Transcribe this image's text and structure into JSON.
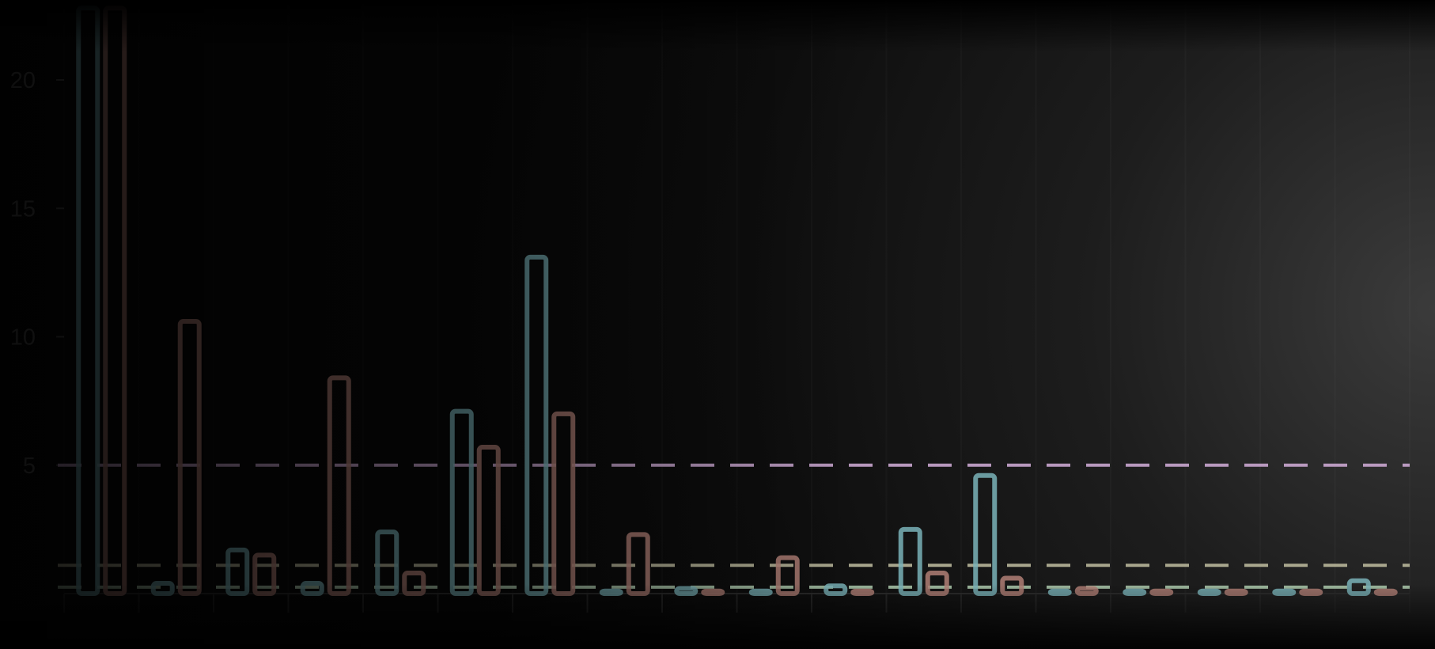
{
  "chart_data": {
    "type": "bar",
    "title": "",
    "xlabel": "",
    "ylabel": "",
    "ylim": [
      0,
      22.8
    ],
    "yticks": [
      "5",
      "10",
      "15",
      "20"
    ],
    "grid": false,
    "legend": "none",
    "n_groups": 18,
    "series": [
      {
        "color": "#7ab3b9",
        "values": [
          22.8,
          0.4,
          1.7,
          0.4,
          2.4,
          7.1,
          13.1,
          0.1,
          0.2,
          0.1,
          0.3,
          2.5,
          4.6,
          0.1,
          0.1,
          0.1,
          0.1,
          0.5
        ]
      },
      {
        "color": "#b07f76",
        "values": [
          22.8,
          10.6,
          1.5,
          8.4,
          0.8,
          5.7,
          7.0,
          2.3,
          0.1,
          1.4,
          0.1,
          0.8,
          0.6,
          0.2,
          0.1,
          0.1,
          0.1,
          0.1
        ]
      }
    ],
    "reference_lines": [
      {
        "value": 5.0,
        "color": "#c9a6cf",
        "style": "dashed"
      },
      {
        "value": 1.1,
        "color": "#b8b69a",
        "style": "dashed"
      },
      {
        "value": 0.25,
        "color": "#a8c4a8",
        "style": "dashed"
      }
    ]
  }
}
